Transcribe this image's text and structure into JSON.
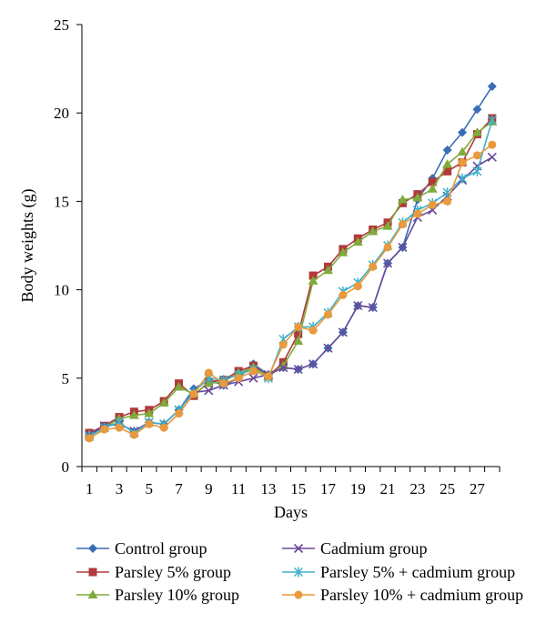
{
  "chart_data": {
    "type": "line",
    "title": "",
    "xlabel": "Days",
    "ylabel": "Body weights (g)",
    "ylim": [
      0,
      25
    ],
    "yticks": [
      0,
      5,
      10,
      15,
      20,
      25
    ],
    "xticks": [
      1,
      3,
      5,
      7,
      9,
      11,
      13,
      15,
      17,
      19,
      21,
      23,
      25,
      27
    ],
    "x": [
      1,
      2,
      3,
      4,
      5,
      6,
      7,
      8,
      9,
      10,
      11,
      12,
      13,
      14,
      15,
      16,
      17,
      18,
      19,
      20,
      21,
      22,
      23,
      24,
      25,
      26,
      27,
      28
    ],
    "grid": false,
    "legend_position": "bottom",
    "series": [
      {
        "name": "Control group",
        "color": "#3a6db5",
        "marker": "diamond",
        "values": [
          1.9,
          2.3,
          2.4,
          2.0,
          2.5,
          2.4,
          3.2,
          4.4,
          4.9,
          4.6,
          5.0,
          5.8,
          5.2,
          5.6,
          5.5,
          5.8,
          6.7,
          7.6,
          9.1,
          9.0,
          11.5,
          12.4,
          15.1,
          16.3,
          17.9,
          18.9,
          20.2,
          21.5
        ]
      },
      {
        "name": "Parsley 5% group",
        "color": "#b03a3a",
        "marker": "square",
        "values": [
          1.9,
          2.3,
          2.8,
          3.1,
          3.2,
          3.7,
          4.7,
          4.0,
          4.8,
          4.9,
          5.4,
          5.7,
          5.1,
          5.9,
          7.5,
          10.8,
          11.3,
          12.3,
          12.9,
          13.4,
          13.8,
          14.9,
          15.4,
          16.1,
          16.7,
          17.2,
          18.8,
          19.7
        ]
      },
      {
        "name": "Parsley 10% group",
        "color": "#7fab3c",
        "marker": "triangle",
        "values": [
          1.8,
          2.2,
          2.7,
          2.9,
          3.0,
          3.6,
          4.5,
          4.1,
          4.7,
          4.8,
          5.3,
          5.6,
          5.1,
          5.7,
          7.1,
          10.5,
          11.1,
          12.1,
          12.7,
          13.3,
          13.6,
          15.1,
          15.2,
          15.7,
          17.1,
          17.8,
          18.9,
          19.5
        ]
      },
      {
        "name": "Cadmium group",
        "color": "#6a4a9a",
        "marker": "x",
        "values": [
          1.8,
          2.3,
          2.4,
          2.0,
          2.5,
          2.4,
          3.2,
          4.2,
          4.3,
          4.6,
          4.8,
          5.0,
          5.2,
          5.6,
          5.5,
          5.8,
          6.7,
          7.6,
          9.1,
          9.0,
          11.5,
          12.4,
          14.1,
          14.5,
          15.3,
          16.2,
          17.0,
          17.5
        ]
      },
      {
        "name": "Parsley 5% + cadmium group",
        "color": "#3fb0c9",
        "marker": "asterisk",
        "values": [
          1.7,
          2.2,
          2.5,
          1.9,
          2.5,
          2.4,
          3.2,
          4.2,
          5.0,
          4.9,
          5.2,
          5.5,
          5.0,
          7.2,
          7.9,
          7.9,
          8.7,
          9.9,
          10.4,
          11.4,
          12.5,
          13.8,
          14.5,
          14.9,
          15.5,
          16.3,
          16.7,
          19.6
        ]
      },
      {
        "name": "Parsley 10% + cadmium group",
        "color": "#e89a3c",
        "marker": "circle",
        "values": [
          1.6,
          2.1,
          2.2,
          1.8,
          2.4,
          2.2,
          3.0,
          4.1,
          5.3,
          4.7,
          5.0,
          5.4,
          5.1,
          6.9,
          7.9,
          7.7,
          8.6,
          9.7,
          10.2,
          11.3,
          12.4,
          13.7,
          14.3,
          14.8,
          15.0,
          17.2,
          17.6,
          18.2
        ]
      }
    ]
  }
}
